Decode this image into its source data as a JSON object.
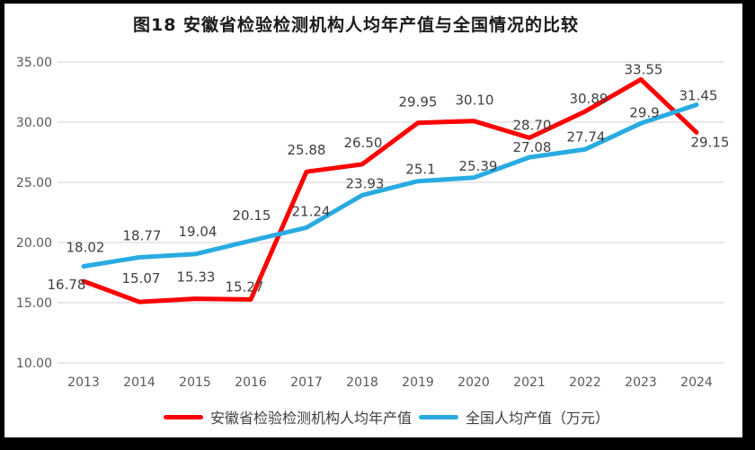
{
  "title": "图18 安徽省检验检测机构人均年产值与全国情况的比较",
  "chart_data": {
    "type": "line",
    "categories": [
      "2013",
      "2014",
      "2015",
      "2016",
      "2017",
      "2018",
      "2019",
      "2020",
      "2021",
      "2022",
      "2023",
      "2024"
    ],
    "series": [
      {
        "name": "安徽省检验检测机构人均年产值",
        "color": "#FF0000",
        "values": [
          16.78,
          15.07,
          15.33,
          15.27,
          25.88,
          26.5,
          29.95,
          30.1,
          28.7,
          30.89,
          33.55,
          29.15
        ],
        "labels": [
          "16.78",
          "15.07",
          "15.33",
          "15.27",
          "25.88",
          "26.50",
          "29.95",
          "30.10",
          "28.70",
          "30.89",
          "33.55",
          "29.15"
        ]
      },
      {
        "name": "全国人均产值（万元）",
        "color": "#29ABE2",
        "values": [
          18.02,
          18.77,
          19.04,
          20.15,
          21.24,
          23.93,
          25.1,
          25.39,
          27.08,
          27.74,
          29.9,
          31.45
        ],
        "labels": [
          "18.02",
          "18.77",
          "19.04",
          "20.15",
          "21.24",
          "23.93",
          "25.1",
          "25.39",
          "27.08",
          "27.74",
          "29.9",
          "31.45"
        ]
      }
    ],
    "ylim": [
      10,
      35
    ],
    "ytick_step": 5,
    "ytick_labels": [
      "10.00",
      "15.00",
      "20.00",
      "25.00",
      "30.00",
      "35.00"
    ],
    "grid": true,
    "legend_position": "bottom",
    "xlabel": "",
    "ylabel": "",
    "colors": {
      "gridline": "#D9D9D9",
      "axis_text": "#595959",
      "data_label_text": "#3F3F3F",
      "title_text": "#1A1A1A",
      "frame": "#000000",
      "background": "#FFFFFF"
    }
  }
}
